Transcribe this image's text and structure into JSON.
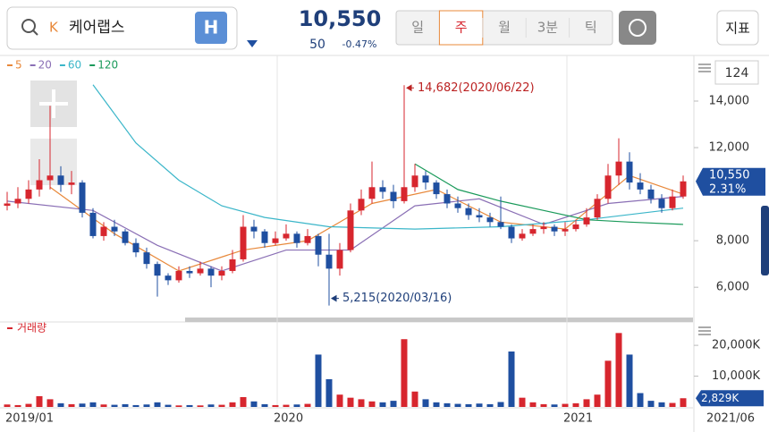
{
  "header": {
    "search_prefix": "K",
    "stock_name": "케어랩스",
    "market_button": "H",
    "price": "10,550",
    "change": "50",
    "change_rate": "-0.47%",
    "tabs": [
      "일",
      "주",
      "월",
      "3분",
      "틱"
    ],
    "active_tab": 1,
    "indicator_button": "지표"
  },
  "chart_data": {
    "type": "candlestick",
    "legend": [
      {
        "name": "5",
        "color": "#e8883a"
      },
      {
        "name": "20",
        "color": "#8a6fb5"
      },
      {
        "name": "60",
        "color": "#3bb6c9"
      },
      {
        "name": "120",
        "color": "#1a9a5a"
      }
    ],
    "period_box": "124",
    "categories": [
      "2019/01",
      null,
      null,
      null,
      null,
      null,
      null,
      null,
      null,
      null,
      null,
      null,
      null,
      null,
      null,
      null,
      null,
      null,
      null,
      null,
      null,
      null,
      null,
      null,
      null,
      "2020",
      null,
      null,
      null,
      null,
      null,
      null,
      null,
      null,
      null,
      null,
      null,
      null,
      null,
      null,
      null,
      null,
      null,
      null,
      null,
      null,
      null,
      null,
      null,
      null,
      null,
      null,
      "2021",
      null,
      null,
      null,
      null,
      null,
      null,
      null,
      null,
      null,
      null,
      null
    ],
    "end_label": "2021/06",
    "up_color": "#d7262e",
    "down_color": "#1f4fa0",
    "candles": [
      [
        9500,
        10100,
        9300,
        9600
      ],
      [
        9600,
        10300,
        9400,
        9800
      ],
      [
        9800,
        10600,
        9600,
        10200
      ],
      [
        10200,
        11500,
        9900,
        10600
      ],
      [
        10600,
        13800,
        10200,
        10800
      ],
      [
        10800,
        11200,
        10100,
        10400
      ],
      [
        10400,
        11000,
        10000,
        10500
      ],
      [
        10500,
        10600,
        9000,
        9200
      ],
      [
        9200,
        9400,
        8100,
        8200
      ],
      [
        8200,
        8800,
        8000,
        8600
      ],
      [
        8600,
        8900,
        8200,
        8400
      ],
      [
        8400,
        8500,
        7800,
        7900
      ],
      [
        7900,
        8100,
        7300,
        7500
      ],
      [
        7500,
        7700,
        6800,
        7000
      ],
      [
        7000,
        7100,
        5600,
        6500
      ],
      [
        6500,
        6600,
        6100,
        6300
      ],
      [
        6300,
        6900,
        6200,
        6700
      ],
      [
        6700,
        6900,
        6400,
        6600
      ],
      [
        6600,
        7100,
        6500,
        6800
      ],
      [
        6800,
        6900,
        6000,
        6500
      ],
      [
        6500,
        6900,
        6300,
        6700
      ],
      [
        6700,
        7600,
        6600,
        7200
      ],
      [
        7200,
        9100,
        7100,
        8600
      ],
      [
        8600,
        8900,
        8100,
        8400
      ],
      [
        8400,
        8500,
        7700,
        7900
      ],
      [
        7900,
        8400,
        7800,
        8100
      ],
      [
        8100,
        8700,
        8000,
        8300
      ],
      [
        8300,
        8400,
        7700,
        7900
      ],
      [
        7900,
        8500,
        7800,
        8200
      ],
      [
        8200,
        8300,
        6900,
        7400
      ],
      [
        7400,
        8300,
        5215,
        6800
      ],
      [
        6800,
        7900,
        6500,
        7600
      ],
      [
        7600,
        9600,
        7500,
        9300
      ],
      [
        9300,
        10200,
        9100,
        9800
      ],
      [
        9800,
        11400,
        9600,
        10300
      ],
      [
        10300,
        10600,
        9800,
        10100
      ],
      [
        10100,
        10400,
        9400,
        9700
      ],
      [
        9700,
        14682,
        9600,
        10300
      ],
      [
        10300,
        11300,
        10100,
        10800
      ],
      [
        10800,
        11000,
        10200,
        10500
      ],
      [
        10500,
        10600,
        9800,
        10000
      ],
      [
        10000,
        10200,
        9400,
        9600
      ],
      [
        9600,
        9900,
        9200,
        9400
      ],
      [
        9400,
        9600,
        8900,
        9100
      ],
      [
        9100,
        9400,
        8800,
        9000
      ],
      [
        9000,
        9200,
        8600,
        8800
      ],
      [
        8800,
        9900,
        8500,
        8600
      ],
      [
        8600,
        8700,
        7900,
        8100
      ],
      [
        8100,
        8500,
        8000,
        8300
      ],
      [
        8300,
        8700,
        8200,
        8500
      ],
      [
        8500,
        8800,
        8300,
        8600
      ],
      [
        8600,
        8700,
        8200,
        8400
      ],
      [
        8400,
        8800,
        8200,
        8500
      ],
      [
        8500,
        8900,
        8400,
        8700
      ],
      [
        8700,
        9400,
        8600,
        9000
      ],
      [
        9000,
        10000,
        8900,
        9800
      ],
      [
        9800,
        11300,
        9600,
        10800
      ],
      [
        10800,
        12400,
        10400,
        11400
      ],
      [
        11400,
        11800,
        10200,
        10500
      ],
      [
        10500,
        10900,
        10000,
        10200
      ],
      [
        10200,
        10400,
        9600,
        9800
      ],
      [
        9800,
        10000,
        9200,
        9400
      ],
      [
        9400,
        10200,
        9300,
        9900
      ],
      [
        9900,
        10800,
        9800,
        10550
      ]
    ],
    "moving_averages": [
      {
        "name": "5",
        "x": [
          4,
          10,
          16,
          22,
          28,
          34,
          40,
          46,
          52,
          58,
          63
        ],
        "values": [
          10300,
          8300,
          6700,
          7600,
          8000,
          9600,
          10200,
          8800,
          8500,
          10800,
          10000
        ]
      },
      {
        "name": "20",
        "x": [
          0,
          8,
          14,
          20,
          26,
          32,
          38,
          44,
          50,
          56,
          63
        ],
        "values": [
          9700,
          9300,
          7800,
          6700,
          7600,
          7600,
          9500,
          9800,
          8700,
          9600,
          9900
        ]
      },
      {
        "name": "60",
        "x": [
          8,
          12,
          16,
          20,
          24,
          30,
          38,
          46,
          54,
          63
        ],
        "values": [
          14700,
          12200,
          10600,
          9500,
          9000,
          8600,
          8500,
          8600,
          8900,
          9400
        ]
      },
      {
        "name": "120",
        "x": [
          38,
          42,
          46,
          50,
          54,
          58,
          63
        ],
        "values": [
          11300,
          10200,
          9700,
          9300,
          8900,
          8800,
          8700
        ]
      }
    ],
    "ylim": [
      4700,
      15960
    ],
    "yticks": [
      {
        "value": 6000,
        "label": "6,000"
      },
      {
        "value": 8000,
        "label": "8,000"
      },
      {
        "value": 12000,
        "label": "12,000"
      },
      {
        "value": 14000,
        "label": "14,000"
      }
    ],
    "price_tag": {
      "value": 10550,
      "label": "10,550"
    },
    "price_change": {
      "value": 2.31,
      "label": "2.31%"
    },
    "annotations": [
      {
        "text": "14,682(2020/06/22)",
        "index": 37,
        "value": 14682
      },
      {
        "text": "5,215(2020/03/16)",
        "index": 30,
        "value": 5215
      }
    ],
    "volume_title": "거래량",
    "volume": [
      800,
      600,
      1000,
      3500,
      2500,
      1200,
      900,
      1100,
      1500,
      800,
      700,
      900,
      600,
      800,
      1500,
      700,
      500,
      600,
      500,
      800,
      700,
      1500,
      3200,
      1800,
      900,
      600,
      700,
      800,
      1000,
      17000,
      9000,
      4000,
      3000,
      2500,
      1800,
      1500,
      2000,
      22000,
      5000,
      2500,
      1500,
      1200,
      1000,
      900,
      1100,
      900,
      1600,
      18000,
      3000,
      1500,
      900,
      800,
      1000,
      1200,
      2500,
      4000,
      15000,
      24000,
      17000,
      4500,
      2000,
      1500,
      1300,
      2829
    ],
    "vlim": [
      0,
      27000
    ],
    "vticks": [
      {
        "value": 10000,
        "label": "10,000K"
      },
      {
        "value": 20000,
        "label": "20,000K"
      }
    ],
    "volume_tag": {
      "value": 2829,
      "label": "2,829K"
    }
  }
}
